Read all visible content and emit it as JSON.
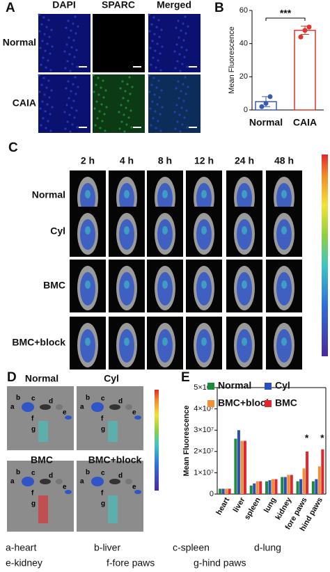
{
  "panel_labels": [
    "A",
    "B",
    "C",
    "D",
    "E"
  ],
  "panel_a": {
    "columns": [
      "DAPI",
      "SPARC",
      "Merged"
    ],
    "rows": [
      "Normal",
      "CAIA"
    ]
  },
  "panel_c": {
    "times": [
      "2 h",
      "4 h",
      "8 h",
      "12 h",
      "24 h",
      "48 h"
    ],
    "groups": [
      "Normal",
      "Cyl",
      "BMC",
      "BMC+block"
    ]
  },
  "panel_d": {
    "groups": [
      "Normal",
      "Cyl",
      "BMC",
      "BMC+block"
    ],
    "organ_letters": [
      "a",
      "b",
      "c",
      "d",
      "e",
      "f",
      "g"
    ]
  },
  "legend": [
    "a-heart",
    "b-liver",
    "c-spleen",
    "d-lung",
    "e-kidney",
    "f-fore paws",
    "g-hind paws"
  ],
  "chart_data": [
    {
      "type": "bar",
      "y_label": "Mean Fluorescence",
      "categories": [
        "Normal",
        "CAIA"
      ],
      "values": [
        5,
        48
      ],
      "errors": [
        3,
        2.5
      ],
      "colors": [
        "#3a5bb5",
        "#e0342c"
      ],
      "points": [
        [
          2,
          4,
          8
        ],
        [
          44,
          48,
          50
        ]
      ],
      "ylim": [
        0,
        60
      ],
      "yticks": [
        0,
        20,
        40,
        60
      ],
      "annotation": "***"
    },
    {
      "type": "grouped_bar",
      "y_label": "Mean Fluorescence",
      "categories": [
        "heart",
        "liver",
        "spleen",
        "lung",
        "kidney",
        "fore paws",
        "hind paws"
      ],
      "series": [
        {
          "name": "Normal",
          "color": "#1e8a3c",
          "values": [
            2500000,
            26000000,
            4000000,
            6000000,
            8000000,
            6000000,
            6000000
          ]
        },
        {
          "name": "Cyl",
          "color": "#2b4fb8",
          "values": [
            2500000,
            30000000,
            5000000,
            6500000,
            8000000,
            7000000,
            7000000
          ]
        },
        {
          "name": "BMC+block",
          "color": "#f0913a",
          "values": [
            2500000,
            25000000,
            6000000,
            7000000,
            9000000,
            12000000,
            13000000
          ]
        },
        {
          "name": "BMC",
          "color": "#e3262b",
          "values": [
            2500000,
            25000000,
            6000000,
            7000000,
            9000000,
            20000000,
            21000000
          ]
        }
      ],
      "ylim": [
        0,
        50000000
      ],
      "yticks": [
        0,
        {
          "value": 10000000,
          "label": "1×10⁷"
        },
        {
          "value": 20000000,
          "label": "2×10⁷"
        },
        {
          "value": 30000000,
          "label": "3×10⁷"
        },
        {
          "value": 40000000,
          "label": "4×10⁷"
        },
        {
          "value": 50000000,
          "label": "5×10⁷"
        }
      ],
      "annotations": [
        "*",
        "*"
      ]
    }
  ]
}
